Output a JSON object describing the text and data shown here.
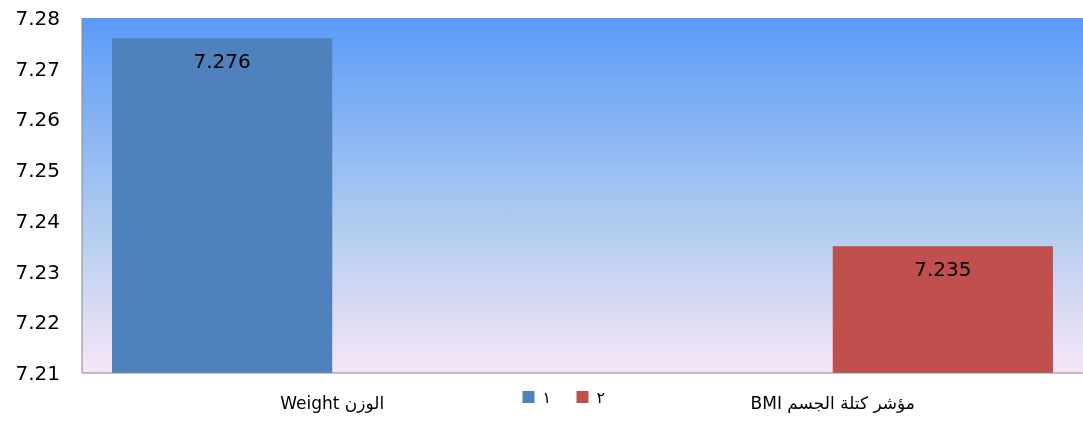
{
  "chart_data": {
    "type": "bar",
    "categories": [
      "الوزن  Weight",
      "مؤشر كتلة الجسم  BMI"
    ],
    "series": [
      {
        "name": "١",
        "color": "#4f81bd",
        "values": [
          7.276,
          null
        ]
      },
      {
        "name": "٢",
        "color": "#c0504d",
        "values": [
          null,
          7.235
        ]
      }
    ],
    "ylim": [
      7.21,
      7.28
    ],
    "yticks": [
      7.21,
      7.22,
      7.23,
      7.24,
      7.25,
      7.26,
      7.27,
      7.28
    ],
    "data_labels": true,
    "legend": "bottom",
    "grid": false
  }
}
